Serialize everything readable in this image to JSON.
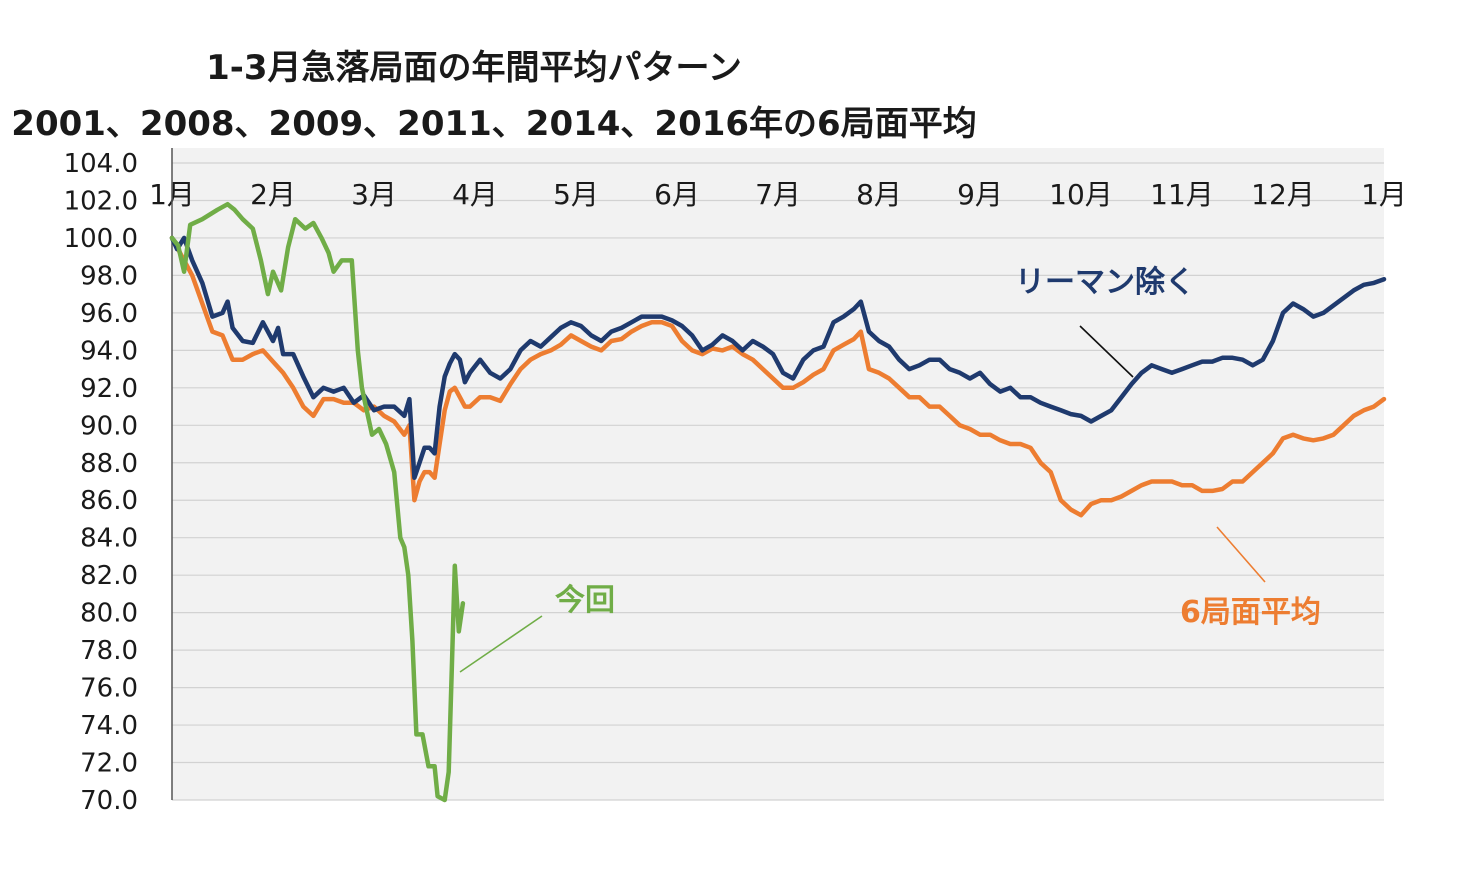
{
  "title": "1-3月急落局面の年間平均パターン",
  "subtitle": "2001、2008、2009、2011、2014、2016年の6局面平均",
  "chart_data": {
    "type": "line",
    "ylim": [
      70,
      104
    ],
    "yticks": [
      "104.0",
      "102.0",
      "100.0",
      "98.0",
      "96.0",
      "94.0",
      "92.0",
      "90.0",
      "88.0",
      "86.0",
      "84.0",
      "82.0",
      "80.0",
      "78.0",
      "76.0",
      "74.0",
      "72.0",
      "70.0"
    ],
    "x_labels": [
      "1月",
      "2月",
      "3月",
      "4月",
      "5月",
      "6月",
      "7月",
      "8月",
      "9月",
      "10月",
      "11月",
      "12月",
      "1月"
    ],
    "xlabel": "",
    "ylabel": "",
    "series": [
      {
        "name": "今回",
        "color": "#70ad47",
        "points": [
          [
            0,
            100
          ],
          [
            0.06,
            99.6
          ],
          [
            0.12,
            98.2
          ],
          [
            0.18,
            100.7
          ],
          [
            0.3,
            101
          ],
          [
            0.45,
            101.5
          ],
          [
            0.55,
            101.8
          ],
          [
            0.62,
            101.5
          ],
          [
            0.7,
            101
          ],
          [
            0.8,
            100.5
          ],
          [
            0.88,
            98.8
          ],
          [
            0.95,
            97
          ],
          [
            1.0,
            98.2
          ],
          [
            1.08,
            97.2
          ],
          [
            1.15,
            99.5
          ],
          [
            1.22,
            101
          ],
          [
            1.32,
            100.5
          ],
          [
            1.4,
            100.8
          ],
          [
            1.48,
            100
          ],
          [
            1.55,
            99.2
          ],
          [
            1.6,
            98.2
          ],
          [
            1.68,
            98.8
          ],
          [
            1.78,
            98.8
          ],
          [
            1.84,
            94
          ],
          [
            1.88,
            92
          ],
          [
            1.92,
            91
          ],
          [
            1.98,
            89.5
          ],
          [
            2.05,
            89.8
          ],
          [
            2.12,
            89
          ],
          [
            2.2,
            87.5
          ],
          [
            2.26,
            84
          ],
          [
            2.3,
            83.5
          ],
          [
            2.34,
            82
          ],
          [
            2.38,
            78.5
          ],
          [
            2.42,
            73.5
          ],
          [
            2.48,
            73.5
          ],
          [
            2.54,
            71.8
          ],
          [
            2.6,
            71.8
          ],
          [
            2.63,
            70.2
          ],
          [
            2.7,
            70
          ],
          [
            2.74,
            71.5
          ],
          [
            2.77,
            77
          ],
          [
            2.8,
            82.5
          ],
          [
            2.84,
            79
          ],
          [
            2.88,
            80.5
          ]
        ]
      },
      {
        "name": "リーマン除く",
        "color": "#1f3a6e",
        "points": [
          [
            0,
            100
          ],
          [
            0.05,
            99.4
          ],
          [
            0.12,
            100
          ],
          [
            0.2,
            98.8
          ],
          [
            0.3,
            97.6
          ],
          [
            0.4,
            95.8
          ],
          [
            0.5,
            96
          ],
          [
            0.55,
            96.6
          ],
          [
            0.6,
            95.2
          ],
          [
            0.7,
            94.5
          ],
          [
            0.8,
            94.4
          ],
          [
            0.9,
            95.5
          ],
          [
            1.0,
            94.5
          ],
          [
            1.05,
            95.2
          ],
          [
            1.1,
            93.8
          ],
          [
            1.2,
            93.8
          ],
          [
            1.3,
            92.6
          ],
          [
            1.4,
            91.5
          ],
          [
            1.5,
            92
          ],
          [
            1.6,
            91.8
          ],
          [
            1.7,
            92
          ],
          [
            1.8,
            91.2
          ],
          [
            1.9,
            91.6
          ],
          [
            2.0,
            90.8
          ],
          [
            2.1,
            91
          ],
          [
            2.2,
            91
          ],
          [
            2.3,
            90.5
          ],
          [
            2.35,
            91.4
          ],
          [
            2.4,
            87.2
          ],
          [
            2.45,
            88
          ],
          [
            2.5,
            88.8
          ],
          [
            2.55,
            88.8
          ],
          [
            2.6,
            88.5
          ],
          [
            2.65,
            91
          ],
          [
            2.7,
            92.6
          ],
          [
            2.75,
            93.3
          ],
          [
            2.8,
            93.8
          ],
          [
            2.85,
            93.5
          ],
          [
            2.9,
            92.3
          ],
          [
            2.95,
            92.8
          ],
          [
            3.05,
            93.5
          ],
          [
            3.15,
            92.8
          ],
          [
            3.25,
            92.5
          ],
          [
            3.35,
            93
          ],
          [
            3.45,
            94
          ],
          [
            3.55,
            94.5
          ],
          [
            3.65,
            94.2
          ],
          [
            3.75,
            94.7
          ],
          [
            3.85,
            95.2
          ],
          [
            3.95,
            95.5
          ],
          [
            4.05,
            95.3
          ],
          [
            4.15,
            94.8
          ],
          [
            4.25,
            94.5
          ],
          [
            4.35,
            95
          ],
          [
            4.45,
            95.2
          ],
          [
            4.55,
            95.5
          ],
          [
            4.65,
            95.8
          ],
          [
            4.75,
            95.8
          ],
          [
            4.85,
            95.8
          ],
          [
            4.95,
            95.6
          ],
          [
            5.05,
            95.3
          ],
          [
            5.15,
            94.8
          ],
          [
            5.25,
            94
          ],
          [
            5.35,
            94.3
          ],
          [
            5.45,
            94.8
          ],
          [
            5.55,
            94.5
          ],
          [
            5.65,
            94
          ],
          [
            5.75,
            94.5
          ],
          [
            5.85,
            94.2
          ],
          [
            5.95,
            93.8
          ],
          [
            6.05,
            92.8
          ],
          [
            6.15,
            92.5
          ],
          [
            6.25,
            93.5
          ],
          [
            6.35,
            94
          ],
          [
            6.45,
            94.2
          ],
          [
            6.55,
            95.5
          ],
          [
            6.65,
            95.8
          ],
          [
            6.75,
            96.2
          ],
          [
            6.82,
            96.6
          ],
          [
            6.9,
            95
          ],
          [
            7.0,
            94.5
          ],
          [
            7.1,
            94.2
          ],
          [
            7.2,
            93.5
          ],
          [
            7.3,
            93
          ],
          [
            7.4,
            93.2
          ],
          [
            7.5,
            93.5
          ],
          [
            7.6,
            93.5
          ],
          [
            7.7,
            93
          ],
          [
            7.8,
            92.8
          ],
          [
            7.9,
            92.5
          ],
          [
            8.0,
            92.8
          ],
          [
            8.1,
            92.2
          ],
          [
            8.2,
            91.8
          ],
          [
            8.3,
            92
          ],
          [
            8.4,
            91.5
          ],
          [
            8.5,
            91.5
          ],
          [
            8.6,
            91.2
          ],
          [
            8.7,
            91
          ],
          [
            8.8,
            90.8
          ],
          [
            8.9,
            90.6
          ],
          [
            9.0,
            90.5
          ],
          [
            9.1,
            90.2
          ],
          [
            9.2,
            90.5
          ],
          [
            9.3,
            90.8
          ],
          [
            9.4,
            91.5
          ],
          [
            9.5,
            92.2
          ],
          [
            9.6,
            92.8
          ],
          [
            9.7,
            93.2
          ],
          [
            9.8,
            93
          ],
          [
            9.9,
            92.8
          ],
          [
            10.0,
            93
          ],
          [
            10.1,
            93.2
          ],
          [
            10.2,
            93.4
          ],
          [
            10.3,
            93.4
          ],
          [
            10.4,
            93.6
          ],
          [
            10.5,
            93.6
          ],
          [
            10.6,
            93.5
          ],
          [
            10.7,
            93.2
          ],
          [
            10.8,
            93.5
          ],
          [
            10.9,
            94.5
          ],
          [
            11.0,
            96
          ],
          [
            11.1,
            96.5
          ],
          [
            11.2,
            96.2
          ],
          [
            11.3,
            95.8
          ],
          [
            11.4,
            96
          ],
          [
            11.5,
            96.4
          ],
          [
            11.6,
            96.8
          ],
          [
            11.7,
            97.2
          ],
          [
            11.8,
            97.5
          ],
          [
            11.9,
            97.6
          ],
          [
            12.0,
            97.8
          ]
        ]
      },
      {
        "name": "6局面平均",
        "color": "#ed7d31",
        "points": [
          [
            0,
            100
          ],
          [
            0.1,
            99
          ],
          [
            0.2,
            98
          ],
          [
            0.3,
            96.5
          ],
          [
            0.4,
            95
          ],
          [
            0.5,
            94.8
          ],
          [
            0.6,
            93.5
          ],
          [
            0.7,
            93.5
          ],
          [
            0.8,
            93.8
          ],
          [
            0.9,
            94
          ],
          [
            1.0,
            93.4
          ],
          [
            1.1,
            92.8
          ],
          [
            1.2,
            92
          ],
          [
            1.3,
            91
          ],
          [
            1.4,
            90.5
          ],
          [
            1.5,
            91.4
          ],
          [
            1.6,
            91.4
          ],
          [
            1.7,
            91.2
          ],
          [
            1.8,
            91.2
          ],
          [
            1.9,
            90.8
          ],
          [
            2.0,
            91
          ],
          [
            2.1,
            90.5
          ],
          [
            2.2,
            90.2
          ],
          [
            2.3,
            89.5
          ],
          [
            2.35,
            90
          ],
          [
            2.4,
            86
          ],
          [
            2.45,
            87
          ],
          [
            2.5,
            87.5
          ],
          [
            2.55,
            87.5
          ],
          [
            2.6,
            87.2
          ],
          [
            2.65,
            89
          ],
          [
            2.7,
            90.8
          ],
          [
            2.75,
            91.8
          ],
          [
            2.8,
            92
          ],
          [
            2.85,
            91.5
          ],
          [
            2.9,
            91
          ],
          [
            2.95,
            91
          ],
          [
            3.05,
            91.5
          ],
          [
            3.15,
            91.5
          ],
          [
            3.25,
            91.3
          ],
          [
            3.35,
            92.2
          ],
          [
            3.45,
            93
          ],
          [
            3.55,
            93.5
          ],
          [
            3.65,
            93.8
          ],
          [
            3.75,
            94
          ],
          [
            3.85,
            94.3
          ],
          [
            3.95,
            94.8
          ],
          [
            4.05,
            94.5
          ],
          [
            4.15,
            94.2
          ],
          [
            4.25,
            94
          ],
          [
            4.35,
            94.5
          ],
          [
            4.45,
            94.6
          ],
          [
            4.55,
            95
          ],
          [
            4.65,
            95.3
          ],
          [
            4.75,
            95.5
          ],
          [
            4.85,
            95.5
          ],
          [
            4.95,
            95.3
          ],
          [
            5.05,
            94.5
          ],
          [
            5.15,
            94
          ],
          [
            5.25,
            93.8
          ],
          [
            5.35,
            94.1
          ],
          [
            5.45,
            94
          ],
          [
            5.55,
            94.2
          ],
          [
            5.65,
            93.8
          ],
          [
            5.75,
            93.5
          ],
          [
            5.85,
            93
          ],
          [
            5.95,
            92.5
          ],
          [
            6.05,
            92
          ],
          [
            6.15,
            92
          ],
          [
            6.25,
            92.3
          ],
          [
            6.35,
            92.7
          ],
          [
            6.45,
            93
          ],
          [
            6.55,
            94
          ],
          [
            6.65,
            94.3
          ],
          [
            6.75,
            94.6
          ],
          [
            6.82,
            95
          ],
          [
            6.9,
            93
          ],
          [
            7.0,
            92.8
          ],
          [
            7.1,
            92.5
          ],
          [
            7.2,
            92
          ],
          [
            7.3,
            91.5
          ],
          [
            7.4,
            91.5
          ],
          [
            7.5,
            91
          ],
          [
            7.6,
            91
          ],
          [
            7.7,
            90.5
          ],
          [
            7.8,
            90
          ],
          [
            7.9,
            89.8
          ],
          [
            8.0,
            89.5
          ],
          [
            8.1,
            89.5
          ],
          [
            8.2,
            89.2
          ],
          [
            8.3,
            89
          ],
          [
            8.4,
            89
          ],
          [
            8.5,
            88.8
          ],
          [
            8.6,
            88
          ],
          [
            8.7,
            87.5
          ],
          [
            8.8,
            86
          ],
          [
            8.9,
            85.5
          ],
          [
            9.0,
            85.2
          ],
          [
            9.1,
            85.8
          ],
          [
            9.2,
            86
          ],
          [
            9.3,
            86
          ],
          [
            9.4,
            86.2
          ],
          [
            9.5,
            86.5
          ],
          [
            9.6,
            86.8
          ],
          [
            9.7,
            87
          ],
          [
            9.8,
            87
          ],
          [
            9.9,
            87
          ],
          [
            10.0,
            86.8
          ],
          [
            10.1,
            86.8
          ],
          [
            10.2,
            86.5
          ],
          [
            10.3,
            86.5
          ],
          [
            10.4,
            86.6
          ],
          [
            10.5,
            87
          ],
          [
            10.6,
            87
          ],
          [
            10.7,
            87.5
          ],
          [
            10.8,
            88
          ],
          [
            10.9,
            88.5
          ],
          [
            11.0,
            89.3
          ],
          [
            11.1,
            89.5
          ],
          [
            11.2,
            89.3
          ],
          [
            11.3,
            89.2
          ],
          [
            11.4,
            89.3
          ],
          [
            11.5,
            89.5
          ],
          [
            11.6,
            90
          ],
          [
            11.7,
            90.5
          ],
          [
            11.8,
            90.8
          ],
          [
            11.9,
            91
          ],
          [
            12.0,
            91.4
          ]
        ]
      }
    ],
    "annotations": [
      {
        "text": "リーマン除く",
        "color": "#1f3a6e"
      },
      {
        "text": "今回",
        "color": "#70ad47"
      },
      {
        "text": "6局面平均",
        "color": "#ed7d31"
      }
    ]
  }
}
